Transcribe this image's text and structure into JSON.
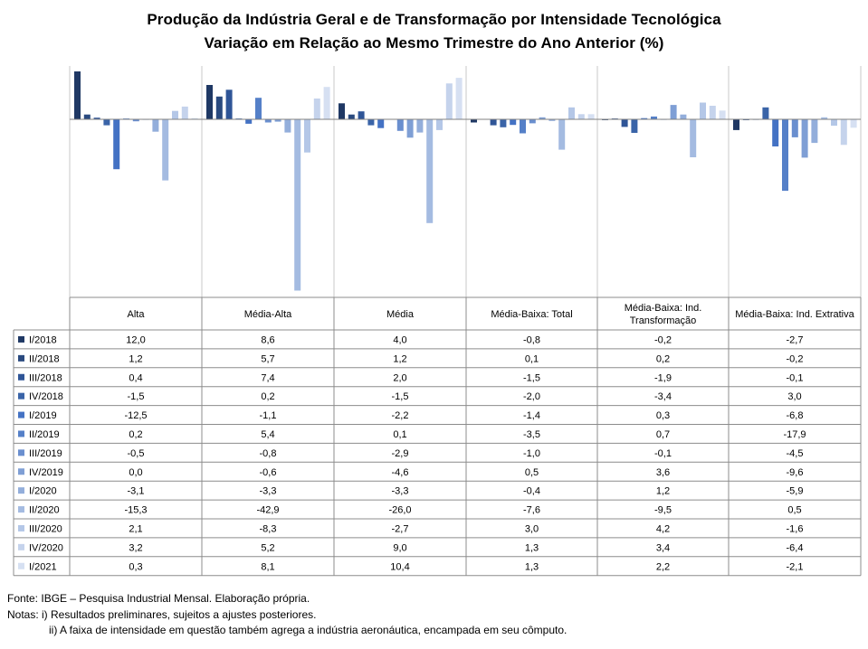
{
  "title": "Produção da Indústria Geral e de Transformação por Intensidade Tecnológica",
  "subtitle": "Variação em Relação ao Mesmo Trimestre do Ano Anterior (%)",
  "notes": {
    "source": "Fonte: IBGE – Pesquisa Industrial Mensal. Elaboração própria.",
    "note1": "Notas: i) Resultados preliminares, sujeitos a ajustes posteriores.",
    "note2": "ii) A faixa de intensidade em questão também agrega a indústria aeronáutica, encampada em seu cômputo."
  },
  "chart_data": {
    "type": "bar",
    "title": "Produção da Indústria Geral e de Transformação por Intensidade Tecnológica",
    "subtitle": "Variação em Relação ao Mesmo Trimestre do Ano Anterior (%)",
    "categories": [
      "Alta",
      "Média-Alta",
      "Média",
      "Média-Baixa: Total",
      "Média-Baixa: Ind. Transformação",
      "Média-Baixa: Ind. Extrativa"
    ],
    "ylim": [
      -45,
      13
    ],
    "grid": false,
    "legend": "table-left",
    "series": [
      {
        "name": "I/2018",
        "color": "#1f3864",
        "values": [
          12.0,
          8.6,
          4.0,
          -0.8,
          -0.2,
          -2.7
        ],
        "labels": [
          "12,0",
          "8,6",
          "4,0",
          "-0,8",
          "-0,2",
          "-2,7"
        ]
      },
      {
        "name": "II/2018",
        "color": "#2a4a7f",
        "values": [
          1.2,
          5.7,
          1.2,
          0.1,
          0.2,
          -0.2
        ],
        "labels": [
          "1,2",
          "5,7",
          "1,2",
          "0,1",
          "0,2",
          "-0,2"
        ]
      },
      {
        "name": "III/2018",
        "color": "#2f5597",
        "values": [
          0.4,
          7.4,
          2.0,
          -1.5,
          -1.9,
          -0.1
        ],
        "labels": [
          "0,4",
          "7,4",
          "2,0",
          "-1,5",
          "-1,9",
          "-0,1"
        ]
      },
      {
        "name": "IV/2018",
        "color": "#3a64a8",
        "values": [
          -1.5,
          0.2,
          -1.5,
          -2.0,
          -3.4,
          3.0
        ],
        "labels": [
          "-1,5",
          "0,2",
          "-1,5",
          "-2,0",
          "-3,4",
          "3,0"
        ]
      },
      {
        "name": "I/2019",
        "color": "#4472c4",
        "values": [
          -12.5,
          -1.1,
          -2.2,
          -1.4,
          0.3,
          -6.8
        ],
        "labels": [
          "-12,5",
          "-1,1",
          "-2,2",
          "-1,4",
          "0,3",
          "-6,8"
        ]
      },
      {
        "name": "II/2019",
        "color": "#5580c8",
        "values": [
          0.2,
          5.4,
          0.1,
          -3.5,
          0.7,
          -17.9
        ],
        "labels": [
          "0,2",
          "5,4",
          "0,1",
          "-3,5",
          "0,7",
          "-17,9"
        ]
      },
      {
        "name": "III/2019",
        "color": "#6a8fcf",
        "values": [
          -0.5,
          -0.8,
          -2.9,
          -1.0,
          -0.1,
          -4.5
        ],
        "labels": [
          "-0,5",
          "-0,8",
          "-2,9",
          "-1,0",
          "-0,1",
          "-4,5"
        ]
      },
      {
        "name": "IV/2019",
        "color": "#7f9fd5",
        "values": [
          0.0,
          -0.6,
          -4.6,
          0.5,
          3.6,
          -9.6
        ],
        "labels": [
          "0,0",
          "-0,6",
          "-4,6",
          "0,5",
          "3,6",
          "-9,6"
        ]
      },
      {
        "name": "I/2020",
        "color": "#93aedb",
        "values": [
          -3.1,
          -3.3,
          -3.3,
          -0.4,
          1.2,
          -5.9
        ],
        "labels": [
          "-3,1",
          "-3,3",
          "-3,3",
          "-0,4",
          "1,2",
          "-5,9"
        ]
      },
      {
        "name": "II/2020",
        "color": "#a4bbe1",
        "values": [
          -15.3,
          -42.9,
          -26.0,
          -7.6,
          -9.5,
          0.5
        ],
        "labels": [
          "-15,3",
          "-42,9",
          "-26,0",
          "-7,6",
          "-9,5",
          "0,5"
        ]
      },
      {
        "name": "III/2020",
        "color": "#b4c7e7",
        "values": [
          2.1,
          -8.3,
          -2.7,
          3.0,
          4.2,
          -1.6
        ],
        "labels": [
          "2,1",
          "-8,3",
          "-2,7",
          "3,0",
          "4,2",
          "-1,6"
        ]
      },
      {
        "name": "IV/2020",
        "color": "#c5d3ec",
        "values": [
          3.2,
          5.2,
          9.0,
          1.3,
          3.4,
          -6.4
        ],
        "labels": [
          "3,2",
          "5,2",
          "9,0",
          "1,3",
          "3,4",
          "-6,4"
        ]
      },
      {
        "name": "I/2021",
        "color": "#d6e0f2",
        "values": [
          0.3,
          8.1,
          10.4,
          1.3,
          2.2,
          -2.1
        ],
        "labels": [
          "0,3",
          "8,1",
          "10,4",
          "1,3",
          "2,2",
          "-2,1"
        ]
      }
    ]
  }
}
